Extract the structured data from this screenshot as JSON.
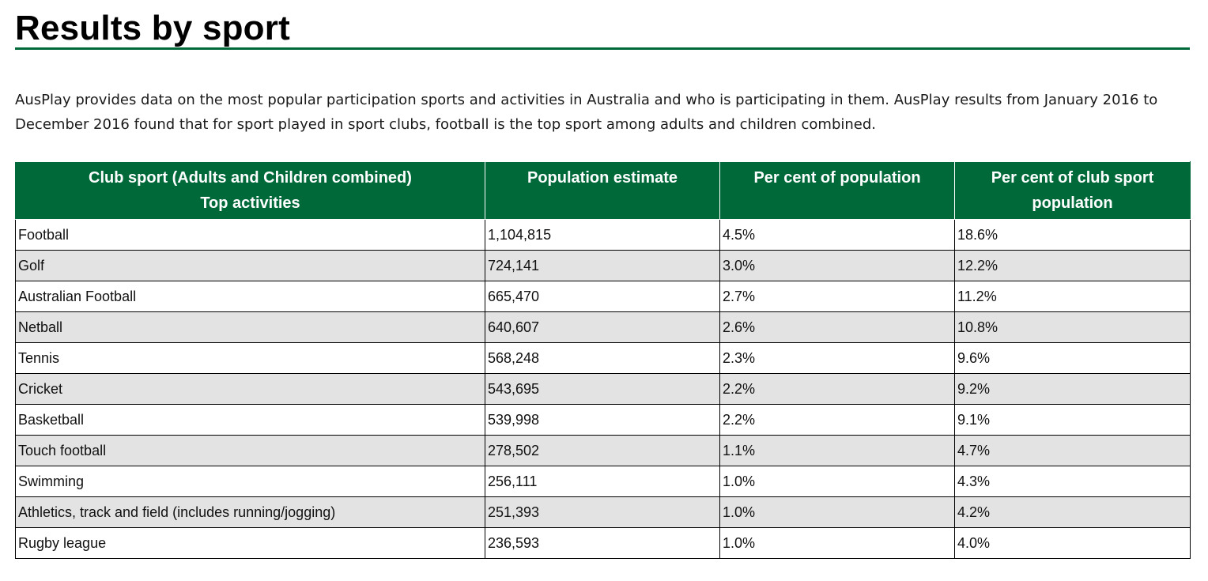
{
  "page": {
    "title": "Results by sport",
    "intro": "AusPlay provides data on the most popular participation sports and activities in Australia and who is participating in them. AusPlay results from January 2016 to December 2016 found that for sport played in sport clubs, football is the top sport among adults and children combined."
  },
  "colors": {
    "accent": "#00693a",
    "row_alt": "#e3e3e3"
  },
  "table": {
    "headers": [
      [
        "Club sport (Adults and Children combined)",
        "Top activities"
      ],
      [
        "Population estimate"
      ],
      [
        "Per cent of population"
      ],
      [
        "Per cent of club sport",
        "population"
      ]
    ],
    "rows": [
      [
        "Football",
        "1,104,815",
        "4.5%",
        "18.6%"
      ],
      [
        "Golf",
        "724,141",
        "3.0%",
        "12.2%"
      ],
      [
        "Australian Football",
        "665,470",
        "2.7%",
        "11.2%"
      ],
      [
        "Netball",
        "640,607",
        "2.6%",
        "10.8%"
      ],
      [
        "Tennis",
        "568,248",
        "2.3%",
        "9.6%"
      ],
      [
        "Cricket",
        "543,695",
        "2.2%",
        "9.2%"
      ],
      [
        "Basketball",
        "539,998",
        "2.2%",
        "9.1%"
      ],
      [
        "Touch football",
        "278,502",
        "1.1%",
        "4.7%"
      ],
      [
        "Swimming",
        "256,111",
        "1.0%",
        "4.3%"
      ],
      [
        "Athletics, track and field (includes running/jogging)",
        "251,393",
        "1.0%",
        "4.2%"
      ],
      [
        "Rugby league",
        "236,593",
        "1.0%",
        "4.0%"
      ]
    ]
  }
}
